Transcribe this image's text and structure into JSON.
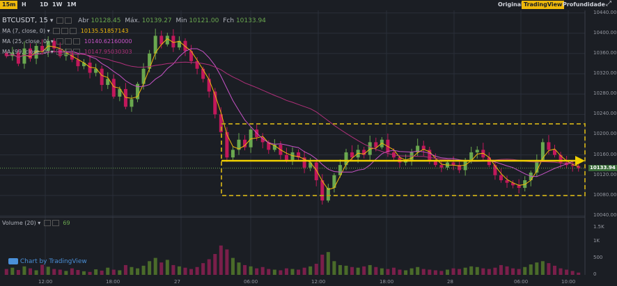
{
  "toolbar": {
    "timeframes": [
      "15m",
      "H",
      "1D",
      "1W",
      "1M"
    ],
    "active_timeframe": "15m",
    "views": [
      "Original",
      "TradingView",
      "Profundidade"
    ],
    "active_view": "TradingView",
    "expand_icon": "expand-icon"
  },
  "symbol": {
    "name": "BTCUSDT, 15",
    "open_label": "Abr",
    "open": "10128.45",
    "high_label": "Máx.",
    "high": "10139.27",
    "low_label": "Min",
    "low": "10121.00",
    "close_label": "Fch",
    "close": "10133.94"
  },
  "indicators": [
    {
      "label": "MA (7, close, 0)",
      "value": "10135.51857143",
      "color": "#f0b90b"
    },
    {
      "label": "MA (25, close, 0)",
      "value": "10140.62160000",
      "color": "#c653c6"
    },
    {
      "label": "MA (99, close, 0)",
      "value": "10147.95030303",
      "color": "#b0307a"
    }
  ],
  "volume": {
    "label": "Volume (20)",
    "value": "69",
    "value_color": "#6aa84f"
  },
  "price_axis": [
    "10440.00",
    "10400.00",
    "10360.00",
    "10320.00",
    "10280.00",
    "10240.00",
    "10200.00",
    "10160.00",
    "10120.00",
    "10080.00",
    "10040.00"
  ],
  "current_price": "10133.94",
  "volume_axis": [
    "1.5K",
    "1K",
    "500",
    "0"
  ],
  "time_axis": [
    "12:00",
    "18:00",
    "27",
    "06:00",
    "12:00",
    "18:00",
    "28",
    "06:00",
    "10:00"
  ],
  "branding": {
    "text": "Chart by TradingView"
  },
  "colors": {
    "up": "#6aa84f",
    "down": "#c2185b",
    "accent": "#f0b90b",
    "background": "#1b1e24"
  },
  "chart_data": {
    "type": "candlestick",
    "title": "BTCUSDT, 15",
    "ylim": [
      10040,
      10445
    ],
    "price_path": [
      10355,
      10362,
      10340,
      10370,
      10350,
      10375,
      10365,
      10385,
      10370,
      10355,
      10362,
      10348,
      10335,
      10342,
      10322,
      10330,
      10298,
      10310,
      10275,
      10290,
      10255,
      10270,
      10300,
      10330,
      10360,
      10395,
      10378,
      10395,
      10372,
      10385,
      10365,
      10345,
      10330,
      10310,
      10285,
      10240,
      10205,
      10155,
      10170,
      10190,
      10175,
      10210,
      10195,
      10185,
      10170,
      10180,
      10160,
      10150,
      10165,
      10155,
      10135,
      10145,
      10110,
      10070,
      10095,
      10120,
      10140,
      10165,
      10155,
      10170,
      10160,
      10185,
      10175,
      10190,
      10165,
      10155,
      10145,
      10150,
      10165,
      10178,
      10170,
      10150,
      10140,
      10135,
      10145,
      10140,
      10130,
      10150,
      10165,
      10170,
      10155,
      10140,
      10120,
      10110,
      10105,
      10100,
      10095,
      10110,
      10125,
      10150,
      10185,
      10170,
      10160,
      10145,
      10140,
      10138,
      10134
    ],
    "volume_path": [
      180,
      220,
      150,
      260,
      200,
      140,
      310,
      250,
      180,
      160,
      120,
      200,
      150,
      110,
      90,
      170,
      130,
      220,
      160,
      140,
      300,
      240,
      200,
      280,
      420,
      520,
      380,
      460,
      300,
      260,
      220,
      180,
      240,
      360,
      480,
      640,
      900,
      780,
      520,
      380,
      300,
      260,
      200,
      240,
      180,
      160,
      140,
      200,
      180,
      160,
      220,
      260,
      340,
      620,
      700,
      420,
      300,
      280,
      240,
      220,
      260,
      300,
      240,
      200,
      180,
      220,
      160,
      140,
      200,
      240,
      180,
      160,
      140,
      120,
      160,
      200,
      180,
      220,
      260,
      240,
      200,
      180,
      220,
      300,
      260,
      200,
      180,
      240,
      320,
      380,
      420,
      360,
      280,
      200,
      160,
      120,
      69
    ]
  }
}
